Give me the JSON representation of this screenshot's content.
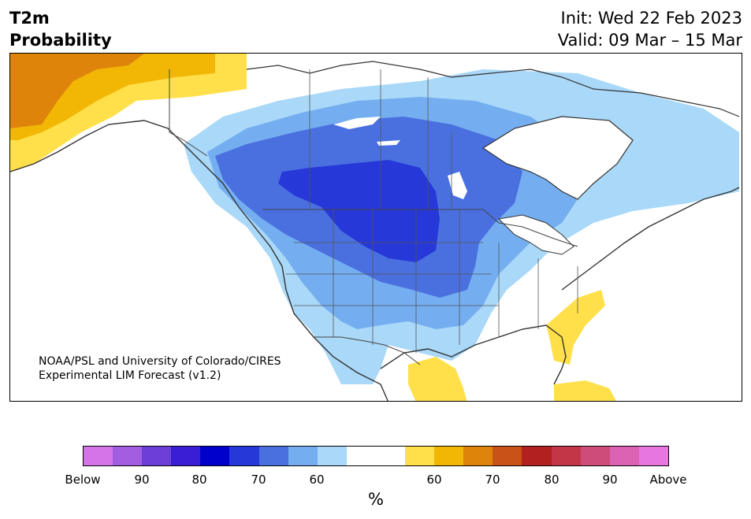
{
  "header": {
    "variable": "T2m",
    "product": "Probability",
    "init": "Init: Wed 22 Feb 2023",
    "valid": "Valid: 09 Mar – 15 Mar"
  },
  "credit": {
    "line1": "NOAA/PSL and University of Colorado/CIRES",
    "line2": "Experimental LIM Forecast (v1.2)"
  },
  "colorbar": {
    "unit": "%",
    "colors": [
      "#d474e8",
      "#a35de0",
      "#6e3fd8",
      "#3a1ed6",
      "#0000cc",
      "#2638d8",
      "#4a70e0",
      "#74aef0",
      "#a9d8f8",
      "#ffffff",
      "#ffffff",
      "#ffe04a",
      "#f2b705",
      "#de840b",
      "#c95218",
      "#b2201f",
      "#c23648",
      "#ce4c7a",
      "#dc62b4",
      "#e876e0"
    ],
    "tick_labels": [
      "Below",
      "90",
      "80",
      "70",
      "60",
      "60",
      "70",
      "80",
      "90",
      "Above"
    ]
  },
  "map_legend_colors": {
    "cold_60": "#a9d8f8",
    "cold_70": "#74aef0",
    "cold_80": "#4a70e0",
    "cold_90": "#2638d8",
    "warm_60": "#ffe04a",
    "warm_70": "#f2b705",
    "warm_80": "#de840b"
  }
}
